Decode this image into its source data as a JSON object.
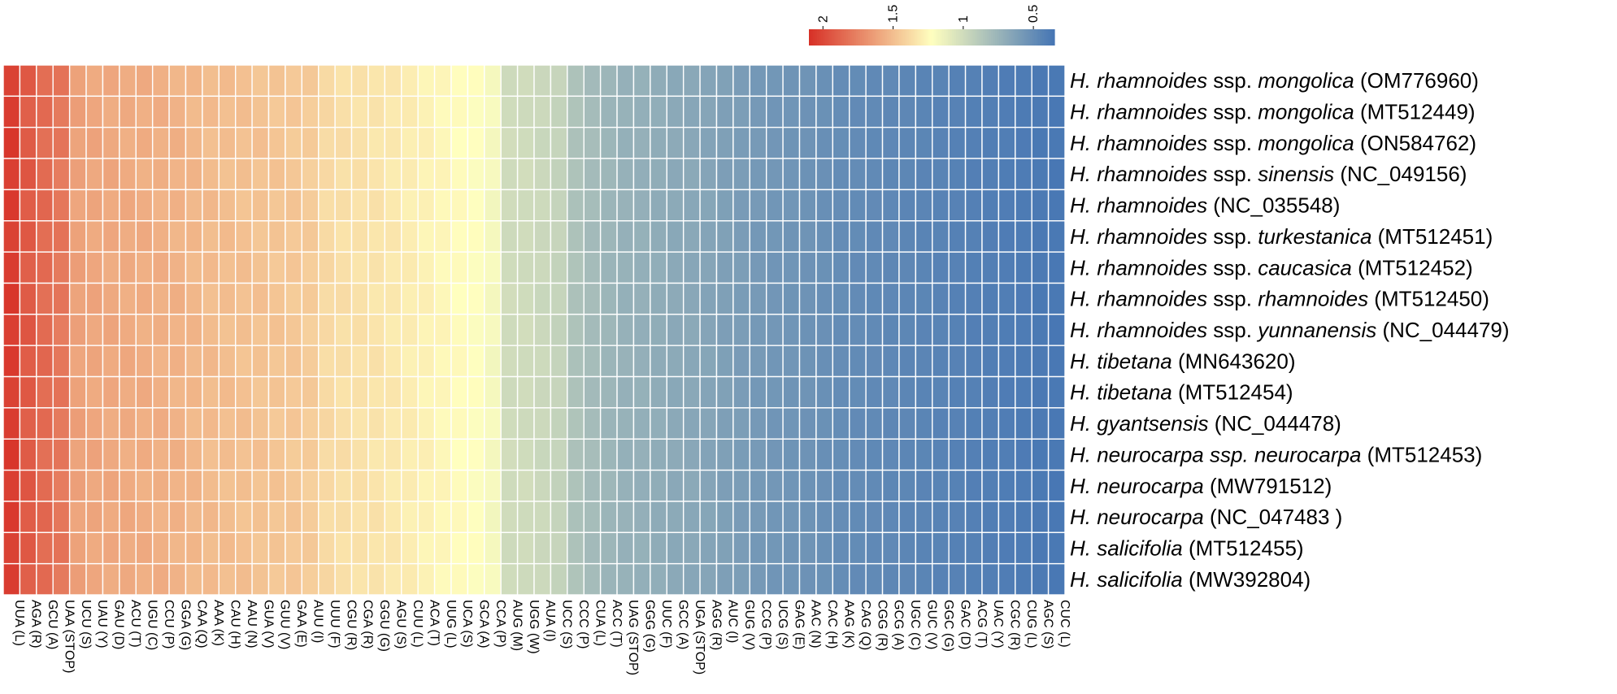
{
  "chart_data": {
    "type": "heatmap",
    "title": "",
    "rows": [
      {
        "genus": "H.",
        "species": "rhamnoides",
        "ssp_word": "ssp.",
        "subspecies": "mongolica",
        "accession": "(OM776960)"
      },
      {
        "genus": "H.",
        "species": "rhamnoides",
        "ssp_word": "ssp.",
        "subspecies": "mongolica",
        "accession": "(MT512449)"
      },
      {
        "genus": "H.",
        "species": "rhamnoides",
        "ssp_word": "ssp.",
        "subspecies": "mongolica",
        "accession": "(ON584762)"
      },
      {
        "genus": "H.",
        "species": "rhamnoides",
        "ssp_word": "ssp.",
        "subspecies": "sinensis",
        "accession": "(NC_049156)"
      },
      {
        "genus": "H.",
        "species": "rhamnoides",
        "ssp_word": "",
        "subspecies": "",
        "accession": "(NC_035548)"
      },
      {
        "genus": "H.",
        "species": "rhamnoides",
        "ssp_word": "ssp.",
        "subspecies": "turkestanica",
        "accession": "(MT512451)"
      },
      {
        "genus": "H.",
        "species": "rhamnoides",
        "ssp_word": "ssp.",
        "subspecies": "caucasica",
        "accession": "(MT512452)"
      },
      {
        "genus": "H.",
        "species": "rhamnoides",
        "ssp_word": "ssp.",
        "subspecies": "rhamnoides",
        "accession": "(MT512450)"
      },
      {
        "genus": "H.",
        "species": "rhamnoides",
        "ssp_word": "ssp.",
        "subspecies": "yunnanensis",
        "accession": "(NC_044479)"
      },
      {
        "genus": "H.",
        "species": "tibetana",
        "ssp_word": "",
        "subspecies": "",
        "accession": "(MN643620)"
      },
      {
        "genus": "H.",
        "species": "tibetana",
        "ssp_word": "",
        "subspecies": "",
        "accession": "(MT512454)"
      },
      {
        "genus": "H.",
        "species": "gyantsensis",
        "ssp_word": "",
        "subspecies": "",
        "accession": "(NC_044478)"
      },
      {
        "genus": "H.",
        "species": "neurocarpa ssp. neurocarpa",
        "ssp_word": "",
        "subspecies": "",
        "accession": "(MT512453)"
      },
      {
        "genus": "H.",
        "species": "neurocarpa",
        "ssp_word": "",
        "subspecies": "",
        "accession": "(MW791512)"
      },
      {
        "genus": "H.",
        "species": "neurocarpa",
        "ssp_word": "",
        "subspecies": "",
        "accession": "(NC_047483 )"
      },
      {
        "genus": "H.",
        "species": "salicifolia",
        "ssp_word": "",
        "subspecies": "",
        "accession": "(MT512455)"
      },
      {
        "genus": "H.",
        "species": "salicifolia",
        "ssp_word": "",
        "subspecies": "",
        "accession": "(MW392804)"
      }
    ],
    "columns": [
      "UUA (L)",
      "AGA (R)",
      "GCU (A)",
      "UAA (STOP)",
      "UCU (S)",
      "UAU (Y)",
      "GAU (D)",
      "ACU (T)",
      "UGU (C)",
      "CCU (P)",
      "GGA (G)",
      "CAA (Q)",
      "AAA (K)",
      "CAU (H)",
      "AAU (N)",
      "GUA (V)",
      "GUU (V)",
      "GAA (E)",
      "AUU (I)",
      "UUU (F)",
      "CGU (R)",
      "CGA (R)",
      "GGU (G)",
      "AGU (S)",
      "CUU (L)",
      "ACA (T)",
      "UUG (L)",
      "UCA (S)",
      "GCA (A)",
      "CCA (P)",
      "AUG (M)",
      "UGG (W)",
      "AUA (I)",
      "UCC (S)",
      "CCC (P)",
      "CUA (L)",
      "ACC (T)",
      "UAG (STOP)",
      "GGG (G)",
      "UUC (F)",
      "GCC (A)",
      "UGA (STOP)",
      "AGG (R)",
      "AUC (I)",
      "GUG (V)",
      "CCG (P)",
      "UCG (S)",
      "GAG (E)",
      "AAC (N)",
      "CAC (H)",
      "AAG (K)",
      "CAG (Q)",
      "CGG (R)",
      "GCG (A)",
      "UGC (C)",
      "GUC (V)",
      "GGC (G)",
      "GAC (D)",
      "ACG (T)",
      "UAC (Y)",
      "CGC (R)",
      "CUG (L)",
      "AGC (S)",
      "CUC (L)"
    ],
    "column_rscu": [
      2.05,
      1.92,
      1.85,
      1.8,
      1.62,
      1.6,
      1.59,
      1.58,
      1.57,
      1.56,
      1.55,
      1.53,
      1.51,
      1.5,
      1.49,
      1.48,
      1.47,
      1.46,
      1.44,
      1.38,
      1.36,
      1.35,
      1.34,
      1.32,
      1.3,
      1.28,
      1.26,
      1.24,
      1.22,
      1.18,
      1.0,
      1.0,
      0.98,
      0.95,
      0.84,
      0.8,
      0.76,
      0.73,
      0.72,
      0.7,
      0.68,
      0.67,
      0.65,
      0.62,
      0.6,
      0.58,
      0.56,
      0.55,
      0.54,
      0.52,
      0.5,
      0.49,
      0.48,
      0.47,
      0.46,
      0.45,
      0.44,
      0.43,
      0.42,
      0.41,
      0.4,
      0.39,
      0.38,
      0.37
    ],
    "color_scale": {
      "min": 0.35,
      "max": 2.1,
      "low_color": "#4575b4",
      "mid_color": "#ffffbf",
      "high_color": "#d73027"
    },
    "legend": {
      "ticks": [
        {
          "value": 2,
          "label": "2"
        },
        {
          "value": 1.5,
          "label": "1.5"
        },
        {
          "value": 1,
          "label": "1"
        },
        {
          "value": 0.5,
          "label": "0.5"
        }
      ],
      "placement": "top-right"
    }
  }
}
